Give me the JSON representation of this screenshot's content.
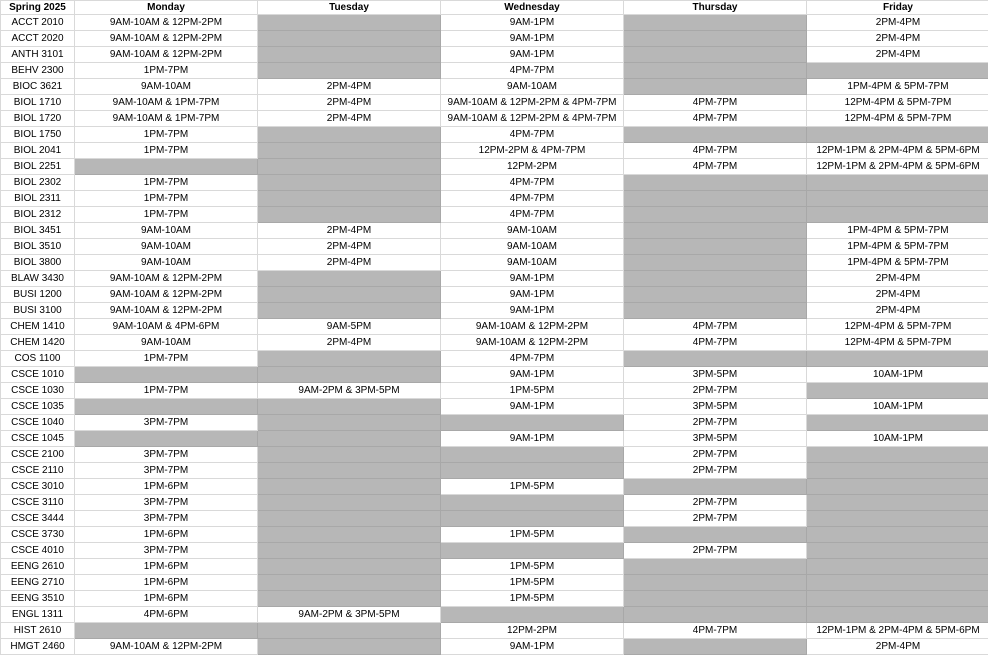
{
  "header": {
    "corner": "Spring 2025",
    "days": [
      "Monday",
      "Tuesday",
      "Wednesday",
      "Thursday",
      "Friday"
    ]
  },
  "colors": {
    "unavailable": "#b7b7b7",
    "grid": "#d9d9d9"
  },
  "rows": [
    {
      "course": "ACCT 2010",
      "slots": [
        "9AM-10AM & 12PM-2PM",
        "",
        "9AM-1PM",
        "",
        "2PM-4PM"
      ]
    },
    {
      "course": "ACCT 2020",
      "slots": [
        "9AM-10AM & 12PM-2PM",
        "",
        "9AM-1PM",
        "",
        "2PM-4PM"
      ]
    },
    {
      "course": "ANTH 3101",
      "slots": [
        "9AM-10AM & 12PM-2PM",
        "",
        "9AM-1PM",
        "",
        "2PM-4PM"
      ]
    },
    {
      "course": "BEHV 2300",
      "slots": [
        "1PM-7PM",
        "",
        "4PM-7PM",
        "",
        ""
      ]
    },
    {
      "course": "BIOC 3621",
      "slots": [
        "9AM-10AM",
        "2PM-4PM",
        "9AM-10AM",
        "",
        "1PM-4PM & 5PM-7PM"
      ]
    },
    {
      "course": "BIOL 1710",
      "slots": [
        "9AM-10AM & 1PM-7PM",
        "2PM-4PM",
        "9AM-10AM & 12PM-2PM & 4PM-7PM",
        "4PM-7PM",
        "12PM-4PM & 5PM-7PM"
      ]
    },
    {
      "course": "BIOL 1720",
      "slots": [
        "9AM-10AM & 1PM-7PM",
        "2PM-4PM",
        "9AM-10AM & 12PM-2PM & 4PM-7PM",
        "4PM-7PM",
        "12PM-4PM & 5PM-7PM"
      ]
    },
    {
      "course": "BIOL 1750",
      "slots": [
        "1PM-7PM",
        "",
        "4PM-7PM",
        "",
        ""
      ]
    },
    {
      "course": "BIOL 2041",
      "slots": [
        "1PM-7PM",
        "",
        "12PM-2PM & 4PM-7PM",
        "4PM-7PM",
        "12PM-1PM & 2PM-4PM & 5PM-6PM"
      ]
    },
    {
      "course": "BIOL 2251",
      "slots": [
        "",
        "",
        "12PM-2PM",
        "4PM-7PM",
        "12PM-1PM & 2PM-4PM & 5PM-6PM"
      ]
    },
    {
      "course": "BIOL 2302",
      "slots": [
        "1PM-7PM",
        "",
        "4PM-7PM",
        "",
        ""
      ]
    },
    {
      "course": "BIOL 2311",
      "slots": [
        "1PM-7PM",
        "",
        "4PM-7PM",
        "",
        ""
      ]
    },
    {
      "course": "BIOL 2312",
      "slots": [
        "1PM-7PM",
        "",
        "4PM-7PM",
        "",
        ""
      ]
    },
    {
      "course": "BIOL 3451",
      "slots": [
        "9AM-10AM",
        "2PM-4PM",
        "9AM-10AM",
        "",
        "1PM-4PM & 5PM-7PM"
      ]
    },
    {
      "course": "BIOL 3510",
      "slots": [
        "9AM-10AM",
        "2PM-4PM",
        "9AM-10AM",
        "",
        "1PM-4PM & 5PM-7PM"
      ]
    },
    {
      "course": "BIOL 3800",
      "slots": [
        "9AM-10AM",
        "2PM-4PM",
        "9AM-10AM",
        "",
        "1PM-4PM & 5PM-7PM"
      ]
    },
    {
      "course": "BLAW 3430",
      "slots": [
        "9AM-10AM & 12PM-2PM",
        "",
        "9AM-1PM",
        "",
        "2PM-4PM"
      ]
    },
    {
      "course": "BUSI 1200",
      "slots": [
        "9AM-10AM & 12PM-2PM",
        "",
        "9AM-1PM",
        "",
        "2PM-4PM"
      ]
    },
    {
      "course": "BUSI 3100",
      "slots": [
        "9AM-10AM & 12PM-2PM",
        "",
        "9AM-1PM",
        "",
        "2PM-4PM"
      ]
    },
    {
      "course": "CHEM 1410",
      "slots": [
        "9AM-10AM & 4PM-6PM",
        "9AM-5PM",
        "9AM-10AM & 12PM-2PM",
        "4PM-7PM",
        "12PM-4PM & 5PM-7PM"
      ]
    },
    {
      "course": "CHEM 1420",
      "slots": [
        "9AM-10AM",
        "2PM-4PM",
        "9AM-10AM & 12PM-2PM",
        "4PM-7PM",
        "12PM-4PM & 5PM-7PM"
      ]
    },
    {
      "course": "COS 1100",
      "slots": [
        "1PM-7PM",
        "",
        "4PM-7PM",
        "",
        ""
      ]
    },
    {
      "course": "CSCE 1010",
      "slots": [
        "",
        "",
        "9AM-1PM",
        "3PM-5PM",
        "10AM-1PM"
      ]
    },
    {
      "course": "CSCE 1030",
      "slots": [
        "1PM-7PM",
        "9AM-2PM & 3PM-5PM",
        "1PM-5PM",
        "2PM-7PM",
        ""
      ]
    },
    {
      "course": "CSCE 1035",
      "slots": [
        "",
        "",
        "9AM-1PM",
        "3PM-5PM",
        "10AM-1PM"
      ]
    },
    {
      "course": "CSCE 1040",
      "slots": [
        "3PM-7PM",
        "",
        "",
        "2PM-7PM",
        ""
      ]
    },
    {
      "course": "CSCE 1045",
      "slots": [
        "",
        "",
        "9AM-1PM",
        "3PM-5PM",
        "10AM-1PM"
      ]
    },
    {
      "course": "CSCE 2100",
      "slots": [
        "3PM-7PM",
        "",
        "",
        "2PM-7PM",
        ""
      ]
    },
    {
      "course": "CSCE 2110",
      "slots": [
        "3PM-7PM",
        "",
        "",
        "2PM-7PM",
        ""
      ]
    },
    {
      "course": "CSCE 3010",
      "slots": [
        "1PM-6PM",
        "",
        "1PM-5PM",
        "",
        ""
      ]
    },
    {
      "course": "CSCE 3110",
      "slots": [
        "3PM-7PM",
        "",
        "",
        "2PM-7PM",
        ""
      ]
    },
    {
      "course": "CSCE 3444",
      "slots": [
        "3PM-7PM",
        "",
        "",
        "2PM-7PM",
        ""
      ]
    },
    {
      "course": "CSCE 3730",
      "slots": [
        "1PM-6PM",
        "",
        "1PM-5PM",
        "",
        ""
      ]
    },
    {
      "course": "CSCE 4010",
      "slots": [
        "3PM-7PM",
        "",
        "",
        "2PM-7PM",
        ""
      ]
    },
    {
      "course": "EENG 2610",
      "slots": [
        "1PM-6PM",
        "",
        "1PM-5PM",
        "",
        ""
      ]
    },
    {
      "course": "EENG 2710",
      "slots": [
        "1PM-6PM",
        "",
        "1PM-5PM",
        "",
        ""
      ]
    },
    {
      "course": "EENG 3510",
      "slots": [
        "1PM-6PM",
        "",
        "1PM-5PM",
        "",
        ""
      ]
    },
    {
      "course": "ENGL 1311",
      "slots": [
        "4PM-6PM",
        "9AM-2PM & 3PM-5PM",
        "",
        "",
        ""
      ]
    },
    {
      "course": "HIST 2610",
      "slots": [
        "",
        "",
        "12PM-2PM",
        "4PM-7PM",
        "12PM-1PM & 2PM-4PM & 5PM-6PM"
      ]
    },
    {
      "course": "HMGT 2460",
      "slots": [
        "9AM-10AM & 12PM-2PM",
        "",
        "9AM-1PM",
        "",
        "2PM-4PM"
      ]
    }
  ]
}
